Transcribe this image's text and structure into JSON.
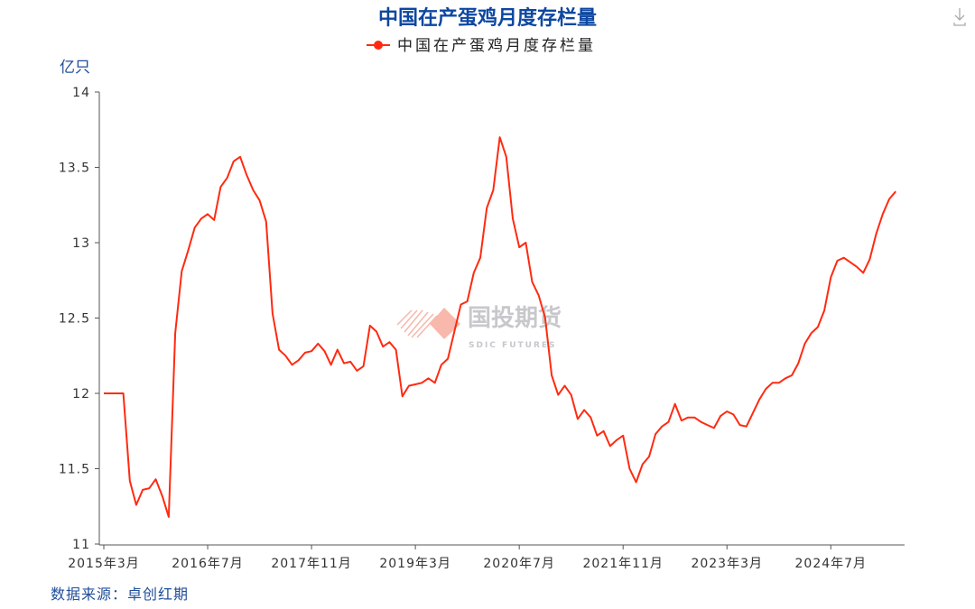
{
  "header": {
    "title": "中国在产蛋鸡月度存栏量",
    "download_icon": "download-icon"
  },
  "source": "数据来源：卓创红期",
  "watermark": {
    "cn": "国投期货",
    "en": "SDIC FUTURES"
  },
  "chart_data": {
    "type": "line",
    "title": "中国在产蛋鸡月度存栏量",
    "ylabel": "亿只",
    "xlabel": "",
    "ylim": [
      11,
      14
    ],
    "y_ticks": [
      "11",
      "11.5",
      "12",
      "12.5",
      "13",
      "13.5",
      "14"
    ],
    "x_ticks": [
      "2015年3月",
      "2016年7月",
      "2017年11月",
      "2019年3月",
      "2020年7月",
      "2021年11月",
      "2023年3月",
      "2024年7月"
    ],
    "legend": {
      "position": "top",
      "entries": [
        "中国在产蛋鸡月度存栏量"
      ]
    },
    "grid": false,
    "series": [
      {
        "name": "中国在产蛋鸡月度存栏量",
        "color": "#ff2a10",
        "x_start": "2015-03",
        "frequency": "monthly",
        "values": [
          12.0,
          12.0,
          12.0,
          12.0,
          11.42,
          11.26,
          11.36,
          11.37,
          11.43,
          11.32,
          11.18,
          12.4,
          12.81,
          12.95,
          13.1,
          13.16,
          13.19,
          13.15,
          13.37,
          13.43,
          13.54,
          13.57,
          13.45,
          13.35,
          13.28,
          13.14,
          12.53,
          12.29,
          12.25,
          12.19,
          12.22,
          12.27,
          12.28,
          12.33,
          12.28,
          12.19,
          12.29,
          12.2,
          12.21,
          12.15,
          12.18,
          12.45,
          12.41,
          12.31,
          12.34,
          12.29,
          11.98,
          12.05,
          12.06,
          12.07,
          12.1,
          12.07,
          12.19,
          12.23,
          12.41,
          12.59,
          12.61,
          12.8,
          12.9,
          13.23,
          13.35,
          13.7,
          13.57,
          13.16,
          12.97,
          13.0,
          12.74,
          12.65,
          12.5,
          12.12,
          11.99,
          12.05,
          11.99,
          11.83,
          11.89,
          11.84,
          11.72,
          11.75,
          11.65,
          11.69,
          11.72,
          11.5,
          11.41,
          11.53,
          11.58,
          11.73,
          11.78,
          11.81,
          11.93,
          11.82,
          11.84,
          11.84,
          11.81,
          11.79,
          11.77,
          11.85,
          11.88,
          11.86,
          11.79,
          11.78,
          11.87,
          11.96,
          12.03,
          12.07,
          12.07,
          12.1,
          12.12,
          12.2,
          12.33,
          12.4,
          12.44,
          12.55,
          12.77,
          12.88,
          12.9,
          12.87,
          12.84,
          12.8,
          12.89,
          13.06,
          13.19,
          13.29,
          13.34
        ]
      }
    ]
  }
}
